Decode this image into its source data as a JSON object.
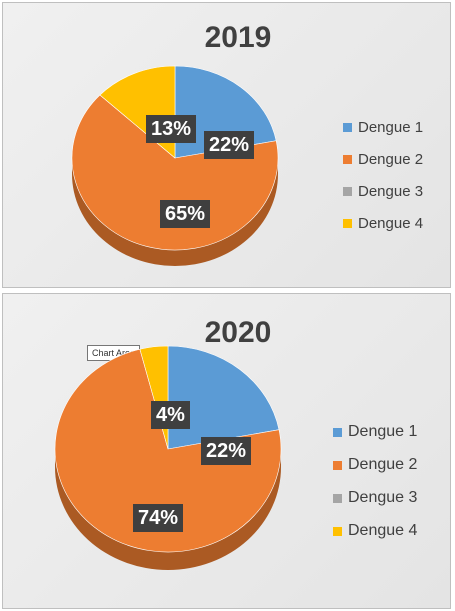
{
  "chart_data": [
    {
      "type": "pie",
      "title": "2019",
      "categories": [
        "Dengue 1",
        "Dengue 2",
        "Dengue 3",
        "Dengue 4"
      ],
      "values": [
        22,
        65,
        0,
        13
      ],
      "data_labels": [
        "22%",
        "65%",
        "",
        "13%"
      ],
      "colors": [
        "#5b9bd5",
        "#ed7d31",
        "#a5a5a5",
        "#ffc000"
      ],
      "legend_position": "right",
      "style": "3d"
    },
    {
      "type": "pie",
      "title": "2020",
      "categories": [
        "Dengue 1",
        "Dengue 2",
        "Dengue 3",
        "Dengue 4"
      ],
      "values": [
        22,
        74,
        0,
        4
      ],
      "data_labels": [
        "22%",
        "74%",
        "",
        "4%"
      ],
      "colors": [
        "#5b9bd5",
        "#ed7d31",
        "#a5a5a5",
        "#ffc000"
      ],
      "legend_position": "right",
      "style": "3d"
    }
  ],
  "tooltip": "Chart Area"
}
